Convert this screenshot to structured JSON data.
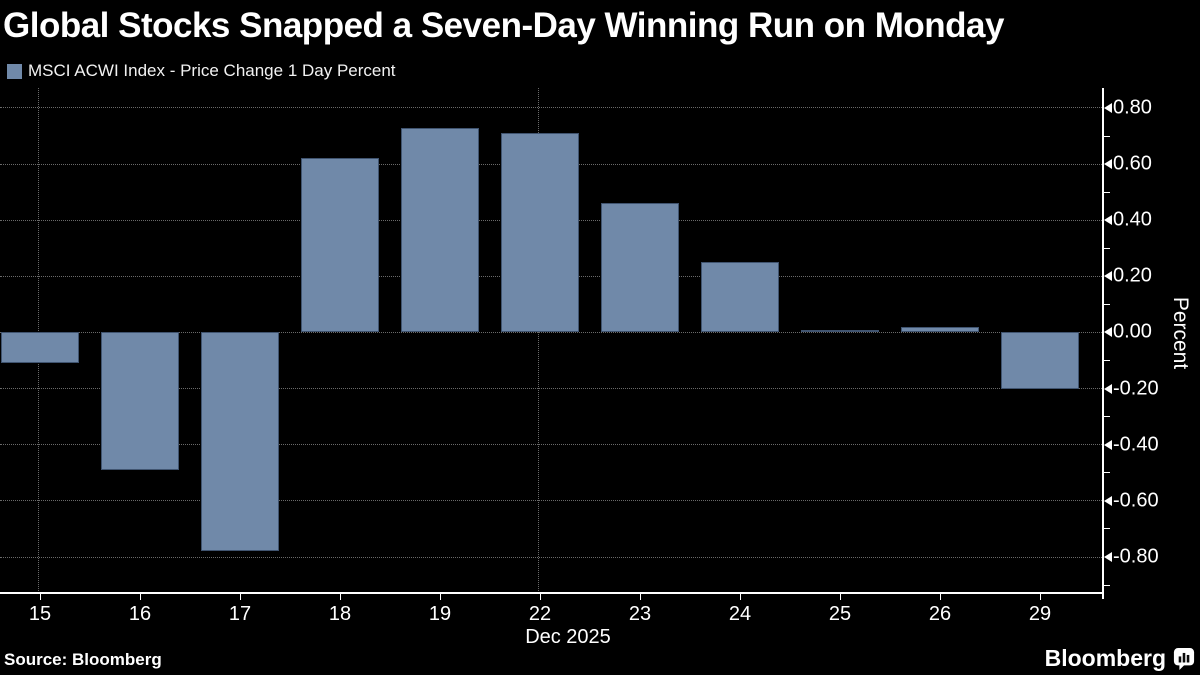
{
  "title": "Global Stocks Snapped a Seven-Day Winning Run on Monday",
  "legend": {
    "label": "MSCI ACWI Index - Price Change 1 Day Percent"
  },
  "source": "Source: Bloomberg",
  "branding": {
    "logo_text": "Bloomberg",
    "logo_icon": "bar-chart-bubble-icon"
  },
  "colors": {
    "background": "#000000",
    "bar": "#7089A9",
    "grid": "#6A6A6A",
    "axis": "#FFFFFF",
    "text": "#FFFFFF"
  },
  "chart_data": {
    "type": "bar",
    "title": "Global Stocks Snapped a Seven-Day Winning Run on Monday",
    "series_name": "MSCI ACWI Index - Price Change 1 Day Percent",
    "categories": [
      "15",
      "16",
      "17",
      "18",
      "19",
      "22",
      "23",
      "24",
      "25",
      "26",
      "29"
    ],
    "values": [
      -0.11,
      -0.49,
      -0.78,
      0.62,
      0.73,
      0.71,
      0.46,
      0.25,
      0.01,
      0.02,
      -0.2
    ],
    "xlabel": "Dec 2025",
    "ylabel": "Percent",
    "ylim": [
      -0.928,
      0.871
    ],
    "ytick_labels": [
      "0.80",
      "0.60",
      "0.40",
      "0.20",
      "0.00",
      "-0.20",
      "-0.40",
      "-0.60",
      "-0.80"
    ],
    "ytick_step": 0.2,
    "ytick_minor_step": 0.1,
    "ytick_minor_min": -0.9,
    "vertical_gridline_categories": [
      "15",
      "22"
    ],
    "grid": true,
    "legend_position": "top-left",
    "bar_color": "#7089A9"
  }
}
